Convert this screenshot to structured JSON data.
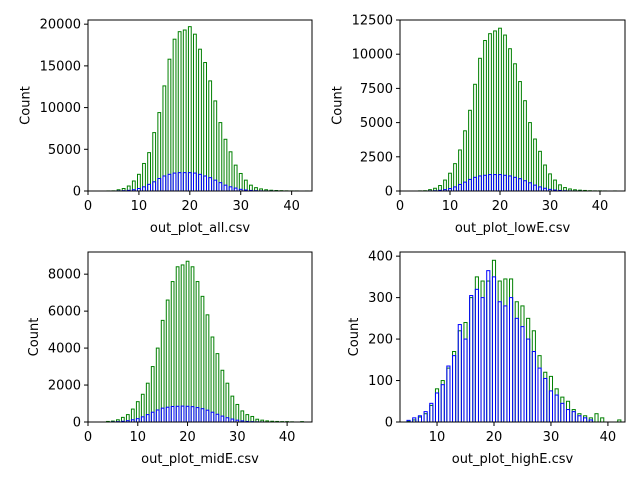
{
  "colors": {
    "series_all": "#008000",
    "series_sub": "#0000ff"
  },
  "chart_data": [
    {
      "type": "bar",
      "xlabel": "out_plot_all.csv",
      "ylabel": "Count",
      "xlim": [
        0,
        44
      ],
      "ylim": [
        0,
        20500
      ],
      "xticks": [
        0,
        10,
        20,
        30,
        40
      ],
      "yticks": [
        0,
        5000,
        10000,
        15000,
        20000
      ],
      "x": [
        1,
        2,
        3,
        4,
        5,
        6,
        7,
        8,
        9,
        10,
        11,
        12,
        13,
        14,
        15,
        16,
        17,
        18,
        19,
        20,
        21,
        22,
        23,
        24,
        25,
        26,
        27,
        28,
        29,
        30,
        31,
        32,
        33,
        34,
        35,
        36,
        37,
        38,
        39,
        40,
        41,
        42,
        43
      ],
      "series": [
        {
          "values": [
            0,
            0,
            0,
            10,
            20,
            150,
            300,
            600,
            1200,
            2000,
            3300,
            4600,
            7000,
            9400,
            12600,
            15800,
            18200,
            19100,
            19300,
            19700,
            18800,
            17000,
            15400,
            13200,
            10800,
            8200,
            6200,
            4700,
            3100,
            2100,
            1300,
            700,
            400,
            250,
            150,
            90,
            60,
            40,
            20,
            10,
            10,
            0,
            5
          ]
        },
        {
          "values": [
            0,
            0,
            0,
            0,
            0,
            20,
            40,
            80,
            150,
            300,
            500,
            800,
            1100,
            1500,
            1800,
            2000,
            2150,
            2200,
            2200,
            2200,
            2150,
            2000,
            1800,
            1600,
            1300,
            1000,
            700,
            500,
            350,
            200,
            120,
            70,
            40,
            20,
            10,
            10,
            5,
            0,
            0,
            0,
            0,
            0,
            0
          ]
        }
      ]
    },
    {
      "type": "bar",
      "xlabel": "out_plot_lowE.csv",
      "ylabel": "Count",
      "xlim": [
        0,
        45
      ],
      "ylim": [
        0,
        12500
      ],
      "xticks": [
        0,
        10,
        20,
        30,
        40
      ],
      "yticks": [
        0,
        2500,
        5000,
        7500,
        10000,
        12500
      ],
      "x": [
        1,
        2,
        3,
        4,
        5,
        6,
        7,
        8,
        9,
        10,
        11,
        12,
        13,
        14,
        15,
        16,
        17,
        18,
        19,
        20,
        21,
        22,
        23,
        24,
        25,
        26,
        27,
        28,
        29,
        30,
        31,
        32,
        33,
        34,
        35,
        36,
        37,
        38,
        39,
        40,
        41,
        42,
        43
      ],
      "series": [
        {
          "values": [
            0,
            0,
            0,
            10,
            20,
            100,
            200,
            400,
            800,
            1300,
            2000,
            3000,
            4400,
            5900,
            7800,
            9700,
            11000,
            11500,
            11700,
            11900,
            11400,
            10400,
            9300,
            8000,
            6600,
            5000,
            3800,
            2900,
            1900,
            1250,
            800,
            450,
            250,
            150,
            90,
            60,
            40,
            20,
            10,
            10,
            5,
            0,
            5
          ]
        },
        {
          "values": [
            0,
            0,
            0,
            0,
            0,
            10,
            20,
            50,
            100,
            180,
            300,
            480,
            650,
            850,
            1000,
            1100,
            1150,
            1200,
            1200,
            1200,
            1150,
            1100,
            1000,
            900,
            750,
            600,
            430,
            300,
            200,
            120,
            70,
            40,
            20,
            10,
            5,
            5,
            0,
            0,
            0,
            0,
            0,
            0,
            0
          ]
        }
      ]
    },
    {
      "type": "bar",
      "xlabel": "out_plot_midE.csv",
      "ylabel": "Count",
      "xlim": [
        0,
        45
      ],
      "ylim": [
        0,
        9200
      ],
      "xticks": [
        0,
        10,
        20,
        30,
        40
      ],
      "yticks": [
        0,
        2000,
        4000,
        6000,
        8000
      ],
      "x": [
        1,
        2,
        3,
        4,
        5,
        6,
        7,
        8,
        9,
        10,
        11,
        12,
        13,
        14,
        15,
        16,
        17,
        18,
        19,
        20,
        21,
        22,
        23,
        24,
        25,
        26,
        27,
        28,
        29,
        30,
        31,
        32,
        33,
        34,
        35,
        36,
        37,
        38,
        39,
        40,
        41,
        42,
        43
      ],
      "series": [
        {
          "values": [
            0,
            0,
            0,
            30,
            50,
            120,
            250,
            400,
            700,
            1100,
            1500,
            2100,
            3000,
            4000,
            5500,
            6600,
            7600,
            8400,
            8500,
            8700,
            8400,
            7600,
            6800,
            5800,
            4600,
            3700,
            2800,
            2100,
            1400,
            950,
            600,
            400,
            300,
            150,
            100,
            60,
            40,
            30,
            20,
            20,
            10,
            0,
            20
          ]
        },
        {
          "values": [
            0,
            0,
            0,
            0,
            10,
            20,
            40,
            70,
            120,
            180,
            280,
            400,
            530,
            650,
            750,
            800,
            840,
            850,
            860,
            850,
            830,
            780,
            720,
            640,
            530,
            420,
            320,
            230,
            160,
            100,
            60,
            30,
            20,
            10,
            5,
            0,
            0,
            0,
            0,
            0,
            0,
            0,
            0
          ]
        }
      ]
    },
    {
      "type": "bar",
      "xlabel": "out_plot_highE.csv",
      "ylabel": "Count",
      "xlim": [
        3.5,
        43
      ],
      "ylim": [
        0,
        410
      ],
      "xticks": [
        10,
        20,
        30,
        40
      ],
      "yticks": [
        0,
        100,
        200,
        300,
        400
      ],
      "x": [
        5,
        6,
        7,
        8,
        9,
        10,
        11,
        12,
        13,
        14,
        15,
        16,
        17,
        18,
        19,
        20,
        21,
        22,
        23,
        24,
        25,
        26,
        27,
        28,
        29,
        30,
        31,
        32,
        33,
        34,
        35,
        36,
        37,
        38,
        39,
        40,
        41,
        42
      ],
      "series": [
        {
          "values": [
            2,
            5,
            12,
            20,
            40,
            80,
            100,
            130,
            170,
            220,
            240,
            300,
            350,
            340,
            340,
            390,
            340,
            345,
            345,
            290,
            280,
            250,
            220,
            160,
            120,
            110,
            80,
            60,
            50,
            30,
            20,
            15,
            10,
            20,
            10,
            0,
            0,
            5
          ]
        },
        {
          "values": [
            4,
            10,
            15,
            25,
            45,
            70,
            90,
            135,
            160,
            235,
            200,
            305,
            320,
            300,
            365,
            350,
            290,
            280,
            300,
            250,
            230,
            200,
            170,
            130,
            105,
            75,
            65,
            45,
            30,
            25,
            15,
            10,
            5,
            0,
            0,
            0,
            0,
            0
          ]
        }
      ]
    }
  ]
}
